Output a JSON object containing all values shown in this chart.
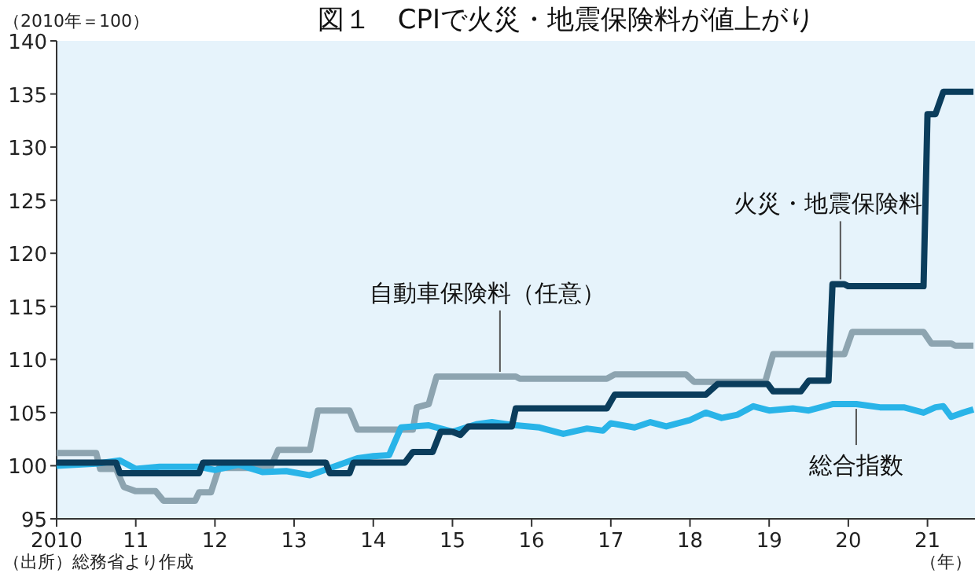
{
  "chart_data": {
    "type": "line",
    "title": "図１　CPIで火災・地震保険料が値上がり",
    "ylabel": "（2010年＝100）",
    "xlabel": "（年）",
    "xlim": [
      2010,
      2021.6
    ],
    "ylim": [
      95,
      140
    ],
    "xticks": [
      {
        "value": 2010,
        "label": "2010"
      },
      {
        "value": 2011,
        "label": "11"
      },
      {
        "value": 2012,
        "label": "12"
      },
      {
        "value": 2013,
        "label": "13"
      },
      {
        "value": 2014,
        "label": "14"
      },
      {
        "value": 2015,
        "label": "15"
      },
      {
        "value": 2016,
        "label": "16"
      },
      {
        "value": 2017,
        "label": "17"
      },
      {
        "value": 2018,
        "label": "18"
      },
      {
        "value": 2019,
        "label": "19"
      },
      {
        "value": 2020,
        "label": "20"
      },
      {
        "value": 2021,
        "label": "21"
      }
    ],
    "yticks": [
      95,
      100,
      105,
      110,
      115,
      120,
      125,
      130,
      135,
      140
    ],
    "series": [
      {
        "color": "#8da4b0",
        "x": [
          2010,
          2010.5,
          2010.55,
          2010.75,
          2010.85,
          2011.0,
          2011.25,
          2011.35,
          2011.75,
          2011.8,
          2011.95,
          2012.05,
          2012.7,
          2012.8,
          2013.2,
          2013.3,
          2013.7,
          2013.8,
          2014.5,
          2014.55,
          2014.7,
          2014.8,
          2015.8,
          2015.85,
          2016.95,
          2017.05,
          2017.95,
          2018.05,
          2018.95,
          2019.05,
          2019.95,
          2020.05,
          2020.95,
          2021.05,
          2021.3,
          2021.35,
          2021.58
        ],
        "values": [
          101.2,
          101.2,
          99.7,
          99.7,
          98.0,
          97.6,
          97.6,
          96.7,
          96.7,
          97.5,
          97.5,
          99.8,
          99.8,
          101.5,
          101.5,
          105.2,
          105.2,
          103.4,
          103.4,
          105.5,
          105.8,
          108.4,
          108.4,
          108.2,
          108.2,
          108.6,
          108.6,
          107.9,
          107.9,
          110.5,
          110.5,
          112.6,
          112.6,
          111.5,
          111.5,
          111.3,
          111.3
        ]
      },
      {
        "color": "#29b4e8",
        "x": [
          2010,
          2010.5,
          2010.8,
          2011.0,
          2011.3,
          2011.8,
          2012.0,
          2012.3,
          2012.6,
          2012.9,
          2013.2,
          2013.5,
          2013.8,
          2014.0,
          2014.2,
          2014.35,
          2014.7,
          2015.0,
          2015.3,
          2015.5,
          2015.8,
          2016.1,
          2016.4,
          2016.7,
          2016.9,
          2017.0,
          2017.3,
          2017.5,
          2017.7,
          2018.0,
          2018.2,
          2018.4,
          2018.6,
          2018.8,
          2019.0,
          2019.3,
          2019.5,
          2019.8,
          2020.1,
          2020.4,
          2020.7,
          2020.95,
          2021.1,
          2021.2,
          2021.3,
          2021.45,
          2021.58
        ],
        "values": [
          100.0,
          100.2,
          100.5,
          99.7,
          99.9,
          99.9,
          99.6,
          100.1,
          99.4,
          99.5,
          99.1,
          99.9,
          100.7,
          100.9,
          101.0,
          103.6,
          103.8,
          103.2,
          103.9,
          104.1,
          103.8,
          103.6,
          103.0,
          103.5,
          103.3,
          104.0,
          103.6,
          104.1,
          103.7,
          104.3,
          105.0,
          104.5,
          104.8,
          105.6,
          105.2,
          105.4,
          105.2,
          105.8,
          105.8,
          105.5,
          105.5,
          105.0,
          105.5,
          105.6,
          104.6,
          105.0,
          105.3
        ]
      },
      {
        "color": "#0b3d5c",
        "x": [
          2010,
          2010.75,
          2010.8,
          2011.8,
          2011.85,
          2013.4,
          2013.45,
          2013.7,
          2013.75,
          2014.4,
          2014.5,
          2014.75,
          2014.85,
          2015.0,
          2015.1,
          2015.2,
          2015.75,
          2015.8,
          2016.95,
          2017.05,
          2018.2,
          2018.35,
          2018.98,
          2019.05,
          2019.4,
          2019.5,
          2019.75,
          2019.8,
          2019.95,
          2020.0,
          2020.95,
          2021.0,
          2021.1,
          2021.2,
          2021.58
        ],
        "values": [
          100.3,
          100.3,
          99.3,
          99.3,
          100.3,
          100.3,
          99.3,
          99.3,
          100.3,
          100.3,
          101.3,
          101.3,
          103.2,
          103.2,
          102.9,
          103.7,
          103.7,
          105.4,
          105.4,
          106.7,
          106.7,
          107.7,
          107.7,
          107.0,
          107.0,
          108.0,
          108.0,
          117.1,
          117.1,
          116.9,
          116.9,
          133.1,
          133.1,
          135.2,
          135.2
        ]
      }
    ],
    "annotations": [
      {
        "text": "自動車保険料（任意）",
        "x": 2015.6,
        "y": 108.4
      },
      {
        "text": "火災・地震保険料",
        "x": 2019.9,
        "y": 117.1
      },
      {
        "text": "総合指数",
        "x": 2020.1,
        "y": 105.8
      },
      "（出所）総務省より作成"
    ]
  }
}
